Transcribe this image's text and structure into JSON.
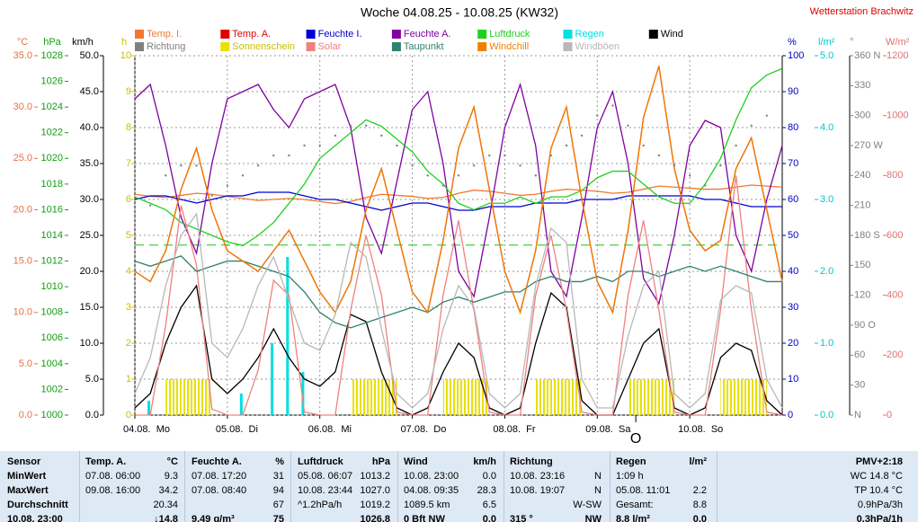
{
  "station": "Wetterstation Brachwitz",
  "chart_data": {
    "type": "line",
    "title": "Woche 04.08.25 - 10.08.25 (KW32)",
    "x": [
      0,
      4,
      8,
      12,
      16,
      20,
      24,
      28,
      32,
      36,
      40,
      44,
      48,
      52,
      56,
      60,
      64,
      68,
      72,
      76,
      80,
      84,
      88,
      92,
      96,
      100,
      104,
      108,
      112,
      116,
      120,
      124,
      128,
      132,
      136,
      140,
      144,
      148,
      152,
      156,
      160,
      164,
      168
    ],
    "xlim": [
      0,
      168
    ],
    "xticks": [
      {
        "value": 0,
        "label": "04.08.  Mo"
      },
      {
        "value": 24,
        "label": "05.08.  Di"
      },
      {
        "value": 48,
        "label": "06.08.  Mi"
      },
      {
        "value": 72,
        "label": "07.08.  Do"
      },
      {
        "value": 96,
        "label": "08.08.  Fr"
      },
      {
        "value": 120,
        "label": "09.08.  Sa"
      },
      {
        "value": 144,
        "label": "10.08.  So"
      }
    ],
    "grid": true,
    "now_marker": {
      "x": 130,
      "label": "O"
    },
    "pressure_reference": 1013.25,
    "axes": {
      "temp": {
        "label": "°C",
        "color": "#e87040",
        "lim": [
          0,
          35
        ],
        "ticks": [
          {
            "value": 0,
            "label": "0.0"
          },
          {
            "value": 5,
            "label": "5.0"
          },
          {
            "value": 10,
            "label": "10.0"
          },
          {
            "value": 15,
            "label": "15.0"
          },
          {
            "value": 20,
            "label": "20.0"
          },
          {
            "value": 25,
            "label": "25.0"
          },
          {
            "value": 30,
            "label": "30.0"
          },
          {
            "value": 35,
            "label": "35.0"
          }
        ]
      },
      "hpa": {
        "label": "hPa",
        "color": "#10a010",
        "lim": [
          1000,
          1028
        ],
        "ticks": [
          1000,
          1002,
          1004,
          1006,
          1008,
          1010,
          1012,
          1014,
          1016,
          1018,
          1020,
          1022,
          1024,
          1026,
          1028
        ]
      },
      "kmh": {
        "label": "km/h",
        "color": "#000000",
        "lim": [
          0,
          50
        ],
        "ticks": [
          {
            "value": 0,
            "label": "0.0"
          },
          {
            "value": 5,
            "label": "5.0"
          },
          {
            "value": 10,
            "label": "10.0"
          },
          {
            "value": 15,
            "label": "15.0"
          },
          {
            "value": 20,
            "label": "20.0"
          },
          {
            "value": 25,
            "label": "25.0"
          },
          {
            "value": 30,
            "label": "30.0"
          },
          {
            "value": 35,
            "label": "35.0"
          },
          {
            "value": 40,
            "label": "40.0"
          },
          {
            "value": 45,
            "label": "45.0"
          },
          {
            "value": 50,
            "label": "50.0"
          }
        ]
      },
      "h": {
        "label": "h",
        "color": "#c8c000",
        "lim": [
          0,
          10
        ],
        "ticks": [
          0,
          1,
          2,
          3,
          4,
          5,
          6,
          7,
          8,
          9,
          10
        ]
      },
      "pct": {
        "label": "%",
        "color": "#0000c0",
        "lim": [
          0,
          100
        ],
        "ticks": [
          0,
          10,
          20,
          30,
          40,
          50,
          60,
          70,
          80,
          90,
          100
        ]
      },
      "rain": {
        "label": "l/m²",
        "color": "#00c8c8",
        "lim": [
          0,
          5
        ],
        "ticks": [
          {
            "value": 0,
            "label": "0.0"
          },
          {
            "value": 1,
            "label": "1.0"
          },
          {
            "value": 2,
            "label": "2.0"
          },
          {
            "value": 3,
            "label": "3.0"
          },
          {
            "value": 4,
            "label": "4.0"
          },
          {
            "value": 5,
            "label": "5.0"
          }
        ]
      },
      "dir": {
        "label": "°",
        "color": "#808080",
        "lim": [
          0,
          360
        ],
        "ticks": [
          {
            "value": 0,
            "label": "N"
          },
          30,
          60,
          {
            "value": 90,
            "label": "90 O"
          },
          120,
          150,
          {
            "value": 180,
            "label": "180 S"
          },
          210,
          240,
          {
            "value": 270,
            "label": "270 W"
          },
          300,
          330,
          {
            "value": 360,
            "label": "360 N"
          }
        ]
      },
      "solar": {
        "label": "W/m²",
        "color": "#e07070",
        "lim": [
          0,
          1200
        ],
        "ticks": [
          0,
          200,
          400,
          600,
          800,
          1000,
          1200
        ]
      }
    },
    "series": [
      {
        "name": "Temp. I.",
        "color": "#f07830",
        "axis": "temp",
        "style": "line",
        "values": [
          21.5,
          21.3,
          21.2,
          21.4,
          21.6,
          21.5,
          21.3,
          21.1,
          20.9,
          21.0,
          21.1,
          21.0,
          20.8,
          20.6,
          20.8,
          21.2,
          21.5,
          21.4,
          21.3,
          21.1,
          21.2,
          21.6,
          21.9,
          21.8,
          21.6,
          21.4,
          21.5,
          21.8,
          22.0,
          21.9,
          21.8,
          21.6,
          21.7,
          22.0,
          22.3,
          22.2,
          22.1,
          22.0,
          22.0,
          22.2,
          22.4,
          22.3,
          22.2
        ]
      },
      {
        "name": "Temp. A.",
        "color": "#e00000",
        "axis": "temp",
        "style": "line",
        "values": [
          14,
          13,
          16,
          22,
          26,
          20,
          16,
          15,
          14,
          16,
          18,
          15,
          12,
          10,
          13,
          20,
          24,
          18,
          12,
          10,
          17,
          26,
          30,
          22,
          14,
          10,
          16,
          26,
          30,
          21,
          13,
          10,
          18,
          29,
          34,
          24,
          18,
          16,
          17,
          24,
          27,
          20,
          13
        ]
      },
      {
        "name": "Feuchte I.",
        "color": "#0000d0",
        "axis": "pct",
        "style": "line",
        "values": [
          60,
          61,
          61,
          60,
          59,
          60,
          61,
          61,
          62,
          62,
          62,
          61,
          60,
          60,
          59,
          58,
          57,
          58,
          59,
          59,
          58,
          57,
          57,
          58,
          58,
          58,
          59,
          59,
          59,
          60,
          60,
          60,
          61,
          61,
          61,
          61,
          61,
          60,
          60,
          59,
          58,
          58,
          58
        ]
      },
      {
        "name": "Feuchte A.",
        "color": "#8000a0",
        "axis": "pct",
        "style": "line",
        "values": [
          88,
          92,
          75,
          55,
          45,
          70,
          88,
          90,
          92,
          85,
          80,
          88,
          90,
          92,
          80,
          55,
          45,
          65,
          85,
          90,
          70,
          40,
          33,
          55,
          80,
          92,
          75,
          40,
          33,
          55,
          80,
          90,
          70,
          38,
          31,
          50,
          75,
          82,
          80,
          50,
          40,
          60,
          75
        ]
      },
      {
        "name": "Luftdruck",
        "color": "#20d020",
        "axis": "hpa",
        "style": "line",
        "values": [
          1017,
          1016.5,
          1016,
          1015,
          1014.5,
          1014,
          1013.5,
          1013.2,
          1014,
          1015,
          1016.5,
          1018,
          1020,
          1021,
          1022,
          1023,
          1022.5,
          1021.5,
          1020.5,
          1019,
          1018,
          1016.5,
          1016,
          1016.5,
          1016.5,
          1017,
          1016.5,
          1017,
          1017,
          1017.5,
          1018.5,
          1019,
          1019,
          1018,
          1017,
          1016.5,
          1016.5,
          1018,
          1020,
          1023,
          1025.5,
          1026.5,
          1027
        ]
      },
      {
        "name": "Regen",
        "color": "#00e0e0",
        "axis": "rain",
        "style": "bar",
        "values": [
          0.2,
          0,
          0,
          0,
          0,
          0,
          0.3,
          0,
          1.0,
          2.2,
          0.6,
          0,
          0,
          0,
          0,
          0,
          0,
          0,
          0,
          0,
          0,
          0,
          0,
          0,
          0,
          0,
          0,
          0,
          0,
          0,
          0,
          0,
          0,
          0,
          0,
          0,
          0,
          0,
          0,
          0,
          0,
          0,
          0
        ]
      },
      {
        "name": "Wind",
        "color": "#000000",
        "axis": "kmh",
        "style": "line",
        "values": [
          1,
          3,
          10,
          15,
          18,
          5,
          3,
          5,
          8,
          12,
          8,
          5,
          4,
          6,
          14,
          13,
          6,
          1,
          0,
          1,
          6,
          10,
          8,
          1,
          0,
          1,
          10,
          17,
          15,
          2,
          0,
          0,
          5,
          10,
          12,
          1,
          0,
          1,
          8,
          10,
          9,
          2,
          0
        ]
      },
      {
        "name": "Richtung",
        "color": "#808080",
        "axis": "dir",
        "style": "dots",
        "values": [
          200,
          210,
          240,
          250,
          250,
          220,
          230,
          240,
          250,
          260,
          260,
          270,
          270,
          280,
          290,
          290,
          280,
          270,
          250,
          240,
          230,
          240,
          250,
          260,
          260,
          250,
          240,
          260,
          270,
          280,
          300,
          310,
          290,
          270,
          260,
          250,
          240,
          230,
          250,
          270,
          290,
          300,
          315
        ]
      },
      {
        "name": "Sonnenschein",
        "color": "#e8e000",
        "axis": "h",
        "style": "stripes",
        "values": [
          0,
          0,
          1,
          1,
          1,
          0,
          0,
          0,
          0,
          0,
          0,
          0,
          0,
          0,
          1,
          1,
          1,
          0,
          0,
          0,
          1,
          1,
          1,
          0,
          0,
          0,
          1,
          1,
          1,
          0,
          0,
          0,
          1,
          1,
          1,
          0,
          0,
          0,
          1,
          1,
          1,
          0,
          0
        ]
      },
      {
        "name": "Solar",
        "color": "#f08080",
        "axis": "solar",
        "style": "line",
        "values": [
          0,
          0,
          300,
          700,
          500,
          20,
          0,
          0,
          150,
          450,
          400,
          10,
          0,
          0,
          350,
          600,
          400,
          10,
          0,
          0,
          400,
          650,
          350,
          10,
          0,
          0,
          400,
          600,
          350,
          10,
          0,
          0,
          400,
          650,
          350,
          10,
          0,
          0,
          350,
          800,
          350,
          10,
          0
        ]
      },
      {
        "name": "Taupunkt",
        "color": "#308070",
        "axis": "temp",
        "style": "line",
        "values": [
          15,
          14.5,
          15,
          15.5,
          14,
          14.5,
          15,
          15,
          14.5,
          14,
          13.5,
          12,
          10,
          9,
          8.5,
          9,
          9.5,
          10,
          10.5,
          10,
          11,
          11.5,
          11,
          11.5,
          12,
          12,
          13,
          13.5,
          13,
          13,
          13.5,
          13,
          14,
          14,
          13.5,
          14,
          14.5,
          14,
          14.5,
          14,
          13.5,
          13,
          13
        ]
      },
      {
        "name": "Windchill",
        "color": "#f08000",
        "axis": "temp",
        "style": "line",
        "values": [
          14,
          13,
          16,
          22,
          26,
          20,
          16,
          15,
          14,
          16,
          18,
          15,
          12,
          10,
          13,
          20,
          24,
          18,
          12,
          10,
          17,
          26,
          30,
          22,
          14,
          10,
          16,
          26,
          30,
          21,
          13,
          10,
          18,
          29,
          34,
          24,
          18,
          16,
          17,
          24,
          27,
          20,
          13
        ]
      },
      {
        "name": "Windböen",
        "color": "#b8b8b8",
        "axis": "kmh",
        "style": "line",
        "values": [
          3,
          8,
          18,
          25,
          28,
          10,
          8,
          12,
          18,
          22,
          16,
          10,
          9,
          14,
          24,
          22,
          12,
          3,
          1,
          3,
          12,
          18,
          15,
          3,
          1,
          3,
          18,
          26,
          24,
          5,
          1,
          1,
          11,
          18,
          20,
          3,
          1,
          3,
          16,
          18,
          17,
          5,
          1
        ]
      }
    ]
  },
  "table": {
    "sensor_label": "Sensor",
    "columns": [
      {
        "title": "Temp. A.",
        "unit": "°C"
      },
      {
        "title": "Feuchte A.",
        "unit": "%"
      },
      {
        "title": "Luftdruck",
        "unit": "hPa"
      },
      {
        "title": "Wind",
        "unit": "km/h"
      },
      {
        "title": "Richtung"
      },
      {
        "title": "Regen",
        "unit": "l/m²"
      }
    ],
    "extra_header": "PMV+2:18",
    "rows": [
      {
        "label": "MinWert",
        "cells": [
          {
            "left": "07.08. 06:00",
            "right": "9.3"
          },
          {
            "left": "07.08. 17:20",
            "right": "31"
          },
          {
            "left": "05.08. 06:07",
            "right": "1013.2"
          },
          {
            "left": "10.08. 23:00",
            "right": "0.0"
          },
          {
            "left": "10.08. 23:16",
            "right": "N"
          },
          {
            "left": "1:09 h"
          }
        ],
        "extra": "WC 14.8 °C"
      },
      {
        "label": "MaxWert",
        "cells": [
          {
            "left": "09.08. 16:00",
            "right": "34.2"
          },
          {
            "left": "07.08. 08:40",
            "right": "94"
          },
          {
            "left": "10.08. 23:44",
            "right": "1027.0"
          },
          {
            "left": "04.08. 09:35",
            "right": "28.3"
          },
          {
            "left": "10.08. 19:07",
            "right": "N"
          },
          {
            "left": "05.08. 11:01",
            "right": "2.2"
          }
        ],
        "extra": "TP 10.4 °C"
      },
      {
        "label": "Durchschnitt",
        "cells": [
          {
            "right": "20.34"
          },
          {
            "right": "67"
          },
          {
            "left": "^1.2hPa/h",
            "right": "1019.2"
          },
          {
            "left": "1089.5 km",
            "right": "6.5"
          },
          {
            "right": "W-SW"
          },
          {
            "left": "Gesamt:",
            "right": "8.8"
          }
        ],
        "extra": "0.9hPa/3h"
      },
      {
        "label": "10.08. 23:00",
        "cells": [
          {
            "right": "↓14.8"
          },
          {
            "left": "9.49 g/m³",
            "right": "75"
          },
          {
            "right": "1026.8"
          },
          {
            "left": "0 Bft NW",
            "right": "0.0"
          },
          {
            "left": "315 °",
            "right": "NW"
          },
          {
            "left": "8.8 l/m²",
            "right": "0.0"
          }
        ],
        "extra": "0.3hPa/1h"
      }
    ]
  }
}
